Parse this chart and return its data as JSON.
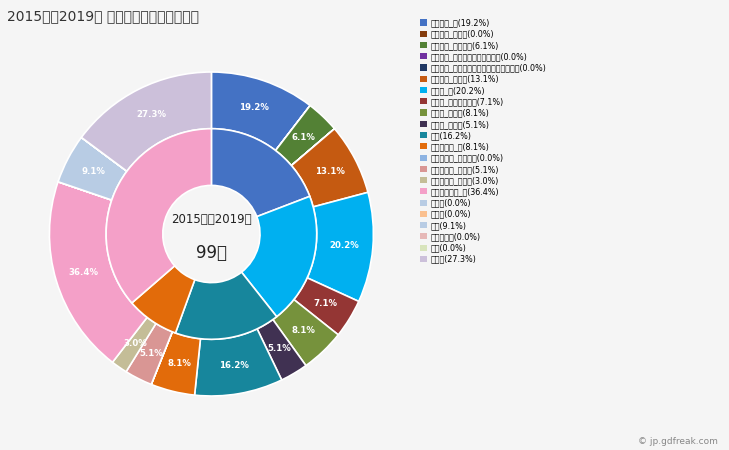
{
  "title": "2015年～2019年 田野町の女性の死因構成",
  "center_text_line1": "2015年～2019年",
  "center_text_line2": "99人",
  "bg_color": "#f5f5f5",
  "outer_slices": [
    {
      "label": "悪性腫瘍_計(19.2%)",
      "value": 19.2,
      "color": "#4472c4",
      "pct": "19.2%",
      "show": true
    },
    {
      "label": "悪性腫瘍_胃がん(0.0%)",
      "value": 0.001,
      "color": "#843c0c",
      "pct": "",
      "show": false
    },
    {
      "label": "悪性腫瘍_大腸がん(6.1%)",
      "value": 6.1,
      "color": "#538135",
      "pct": "6.1%",
      "show": true
    },
    {
      "label": "悪性腫瘍_肝がん・肝内胆管がん(0.0%)",
      "value": 0.001,
      "color": "#7030a0",
      "pct": "",
      "show": false
    },
    {
      "label": "悪性腫瘍_気管がん・気管支がん・肺がん(0.0%)",
      "value": 0.001,
      "color": "#203864",
      "pct": "",
      "show": false
    },
    {
      "label": "悪性腫瘍_その他(13.1%)",
      "value": 13.1,
      "color": "#c55a11",
      "pct": "13.1%",
      "show": true
    },
    {
      "label": "心疾患_計(20.2%)",
      "value": 20.2,
      "color": "#00b0f0",
      "pct": "20.2%",
      "show": true
    },
    {
      "label": "心疾患_急性心筋梗塞(7.1%)",
      "value": 7.1,
      "color": "#943634",
      "pct": "7.1%",
      "show": true
    },
    {
      "label": "心疾患_心不全(8.1%)",
      "value": 8.1,
      "color": "#76923c",
      "pct": "8.1%",
      "show": true
    },
    {
      "label": "心疾患_その他(5.1%)",
      "value": 5.1,
      "color": "#403152",
      "pct": "5.1%",
      "show": true
    },
    {
      "label": "肺炎(16.2%)",
      "value": 16.2,
      "color": "#17869c",
      "pct": "16.2%",
      "show": true
    },
    {
      "label": "脳血管疾患_計(8.1%)",
      "value": 8.1,
      "color": "#e26b0a",
      "pct": "8.1%",
      "show": true
    },
    {
      "label": "脳血管疾患_脳内出血(0.0%)",
      "value": 0.001,
      "color": "#8db3e2",
      "pct": "",
      "show": false
    },
    {
      "label": "脳血管疾患_脳梗塞(5.1%)",
      "value": 5.1,
      "color": "#d99694",
      "pct": "5.1%",
      "show": true
    },
    {
      "label": "脳血管疾患_その他(3.0%)",
      "value": 3.0,
      "color": "#c4bd97",
      "pct": "3.0%",
      "show": true
    },
    {
      "label": "その他の死因_計(36.4%)",
      "value": 36.4,
      "color": "#f4a0c8",
      "pct": "36.4%",
      "show": true
    },
    {
      "label": "肝疾患(0.0%)",
      "value": 0.001,
      "color": "#b8cce4",
      "pct": "",
      "show": false
    },
    {
      "label": "腎不全(0.0%)",
      "value": 0.001,
      "color": "#fac090",
      "pct": "",
      "show": false
    },
    {
      "label": "老衰(9.1%)",
      "value": 9.1,
      "color": "#b8cce4",
      "pct": "9.1%",
      "show": true
    },
    {
      "label": "不慮の事故(0.0%)",
      "value": 0.001,
      "color": "#e6b8b7",
      "pct": "",
      "show": false
    },
    {
      "label": "自殺(0.0%)",
      "value": 0.001,
      "color": "#d8e4bc",
      "pct": "",
      "show": false
    },
    {
      "label": "その他(27.3%)",
      "value": 27.3,
      "color": "#ccc0da",
      "pct": "27.3%",
      "show": true
    }
  ],
  "inner_slices": [
    {
      "label": "悪性腫瘍_計(19.2%)",
      "value": 19.2,
      "color": "#4472c4"
    },
    {
      "label": "心疾患_計(20.2%)",
      "value": 20.2,
      "color": "#00b0f0"
    },
    {
      "label": "肺炎(16.2%)",
      "value": 16.2,
      "color": "#17869c"
    },
    {
      "label": "脳血管疾患_計(8.1%)",
      "value": 8.1,
      "color": "#e26b0a"
    },
    {
      "label": "その他の死因_計(36.4%)",
      "value": 36.4,
      "color": "#f4a0c8"
    }
  ],
  "legend_items": [
    {
      "label": "悪性腫瘍_計(19.2%)",
      "color": "#4472c4"
    },
    {
      "label": "悪性腫瘍_胃がん(0.0%)",
      "color": "#843c0c"
    },
    {
      "label": "悪性腫瘍_大腸がん(6.1%)",
      "color": "#538135"
    },
    {
      "label": "悪性腫瘍_肝がん・肝内胆管がん(0.0%)",
      "color": "#7030a0"
    },
    {
      "label": "悪性腫瘍_気管がん・気管支がん・肺がん(0.0%)",
      "color": "#203864"
    },
    {
      "label": "悪性腫瘍_その他(13.1%)",
      "color": "#c55a11"
    },
    {
      "label": "心疾患_計(20.2%)",
      "color": "#00b0f0"
    },
    {
      "label": "心疾患_急性心筋梗塞(7.1%)",
      "color": "#943634"
    },
    {
      "label": "心疾患_心不全(8.1%)",
      "color": "#76923c"
    },
    {
      "label": "心疾患_その他(5.1%)",
      "color": "#403152"
    },
    {
      "label": "肺炎(16.2%)",
      "color": "#17869c"
    },
    {
      "label": "脳血管疾患_計(8.1%)",
      "color": "#e26b0a"
    },
    {
      "label": "脳血管疾患_脳内出血(0.0%)",
      "color": "#8db3e2"
    },
    {
      "label": "脳血管疾患_脳梗塞(5.1%)",
      "color": "#d99694"
    },
    {
      "label": "脳血管疾患_その他(3.0%)",
      "color": "#c4bd97"
    },
    {
      "label": "その他の死因_計(36.4%)",
      "color": "#f4a0c8"
    },
    {
      "label": "肝疾患(0.0%)",
      "color": "#b8cce4"
    },
    {
      "label": "腎不全(0.0%)",
      "color": "#fac090"
    },
    {
      "label": "老衰(9.1%)",
      "color": "#b8cce4"
    },
    {
      "label": "不慮の事故(0.0%)",
      "color": "#e6b8b7"
    },
    {
      "label": "自殺(0.0%)",
      "color": "#d8e4bc"
    },
    {
      "label": "その他(27.3%)",
      "color": "#ccc0da"
    }
  ],
  "watermark": "© jp.gdfreak.com"
}
